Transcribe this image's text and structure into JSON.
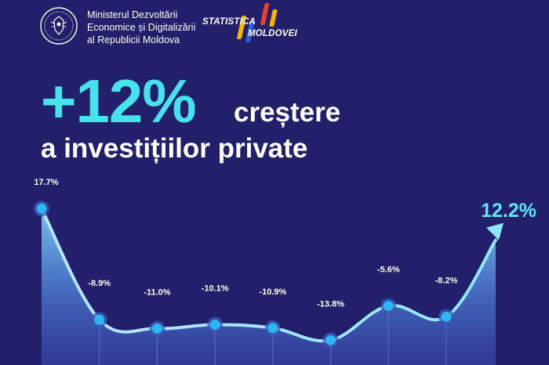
{
  "header": {
    "ministry_lines": [
      "Ministerul Dezvoltării",
      "Economice și Digitalizării",
      "al Republicii Moldova"
    ],
    "stat_word1": "STATISTICA",
    "stat_word2": "MOLDOVEI",
    "stat_bar_colors": [
      "#e7402f",
      "#f5b400",
      "#2f5fd9",
      "#e7402f",
      "#f5b400"
    ]
  },
  "headline": {
    "percent": "+12%",
    "line1_word": "creștere",
    "line2": "a investițiilor private"
  },
  "colors": {
    "background": "#22206a",
    "accent": "#47e3ec",
    "line": "#9fe9ff",
    "marker": "#2ab8f2"
  },
  "chart_data": {
    "type": "line",
    "ylim": [
      -16,
      20
    ],
    "points": [
      {
        "value": 17.7,
        "label": "17.7%"
      },
      {
        "value": -8.9,
        "label": "-8.9%"
      },
      {
        "value": -11.0,
        "label": "-11.0%"
      },
      {
        "value": -10.1,
        "label": "-10.1%"
      },
      {
        "value": -10.9,
        "label": "-10.9%"
      },
      {
        "value": -13.8,
        "label": "-13.8%"
      },
      {
        "value": -5.6,
        "label": "-5.6%"
      },
      {
        "value": -8.2,
        "label": "-8.2%"
      },
      {
        "value": 12.2,
        "label": "12.2%"
      }
    ]
  }
}
